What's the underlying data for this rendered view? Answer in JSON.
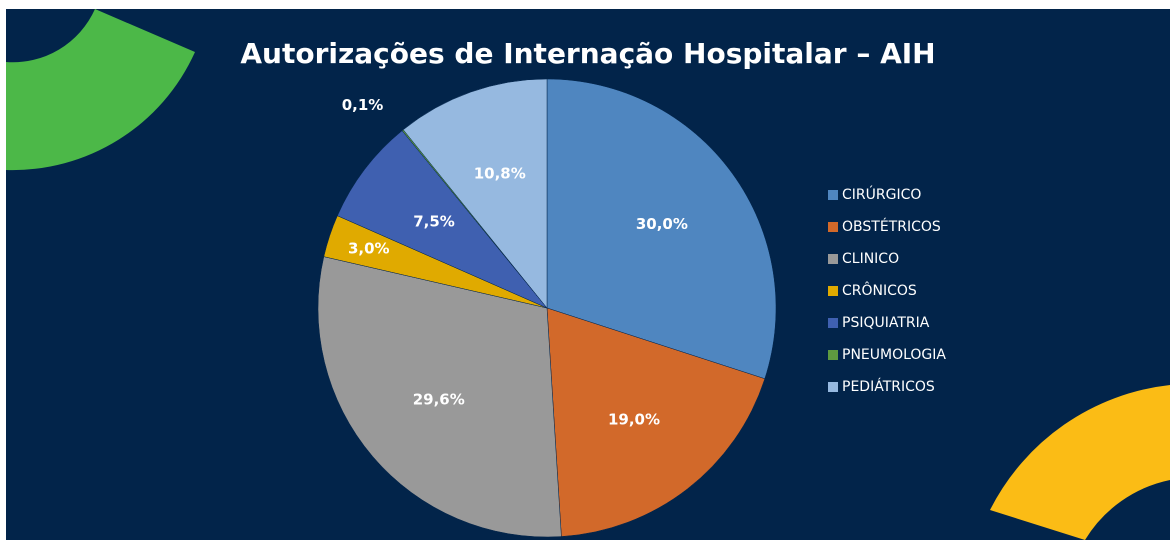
{
  "chart_data": {
    "type": "pie",
    "title": "Autorizações de Internação Hospitalar – AIH",
    "categories": [
      "CIRÚRGICO",
      "OBSTÉTRICOS",
      "CLINICO",
      "CRÔNICOS",
      "PSIQUIATRIA",
      "PNEUMOLOGIA",
      "PEDIÁTRICOS"
    ],
    "values": [
      30.0,
      19.0,
      29.6,
      3.0,
      7.5,
      0.1,
      10.8
    ],
    "value_labels": [
      "30,0%",
      "19,0%",
      "29,6%",
      "3,0%",
      "7,5%",
      "0,1%",
      "10,8%"
    ],
    "colors": [
      "#4f86c0",
      "#d2692a",
      "#999999",
      "#e0aa00",
      "#3f60b0",
      "#5e9a40",
      "#96b9e0"
    ],
    "legend": "right"
  }
}
